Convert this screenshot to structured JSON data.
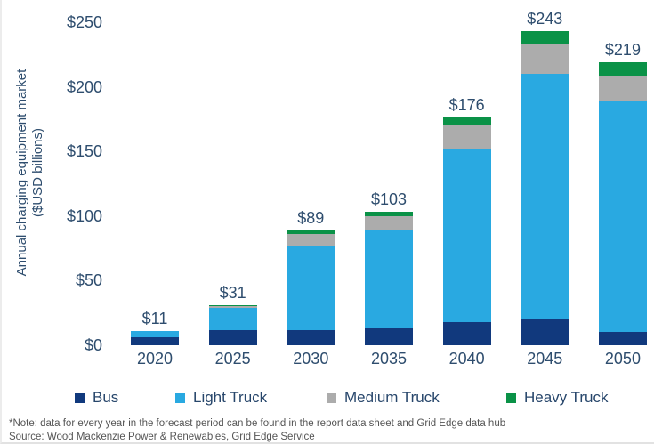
{
  "chart_data": {
    "type": "bar",
    "stacked": true,
    "ylabel_line1": "Annual charging equipment market",
    "ylabel_line2": "($USD billions)",
    "categories": [
      "2020",
      "2025",
      "2030",
      "2035",
      "2040",
      "2045",
      "2050"
    ],
    "series": [
      {
        "name": "Bus",
        "color": "#11397d",
        "values": [
          6,
          12,
          12,
          13,
          18,
          21,
          10
        ]
      },
      {
        "name": "Light Truck",
        "color": "#29a9e1",
        "values": [
          5,
          17,
          65,
          76,
          134,
          189,
          179
        ]
      },
      {
        "name": "Medium Truck",
        "color": "#acacac",
        "values": [
          0,
          1.5,
          9,
          11,
          18,
          23,
          20
        ]
      },
      {
        "name": "Heavy Truck",
        "color": "#0a9247",
        "values": [
          0,
          0.5,
          3,
          3,
          6,
          10,
          10
        ]
      }
    ],
    "totals_labels": [
      "$11",
      "$31",
      "$89",
      "$103",
      "$176",
      "$243",
      "$219"
    ],
    "y_ticks": [
      {
        "label": "$250",
        "value": 250
      },
      {
        "label": "$200",
        "value": 200
      },
      {
        "label": "$150",
        "value": 150
      },
      {
        "label": "$100",
        "value": 100
      },
      {
        "label": "$50",
        "value": 50
      },
      {
        "label": "$0",
        "value": 0
      }
    ],
    "ylim": [
      0,
      250
    ],
    "grid": false,
    "legend_position": "bottom",
    "text_color": "#2e4d6e"
  },
  "footnotes": {
    "note": "*Note: data for every year in the forecast period can be found in the report data sheet and Grid Edge data hub",
    "source": "Source: Wood Mackenzie Power & Renewables, Grid Edge Service"
  }
}
